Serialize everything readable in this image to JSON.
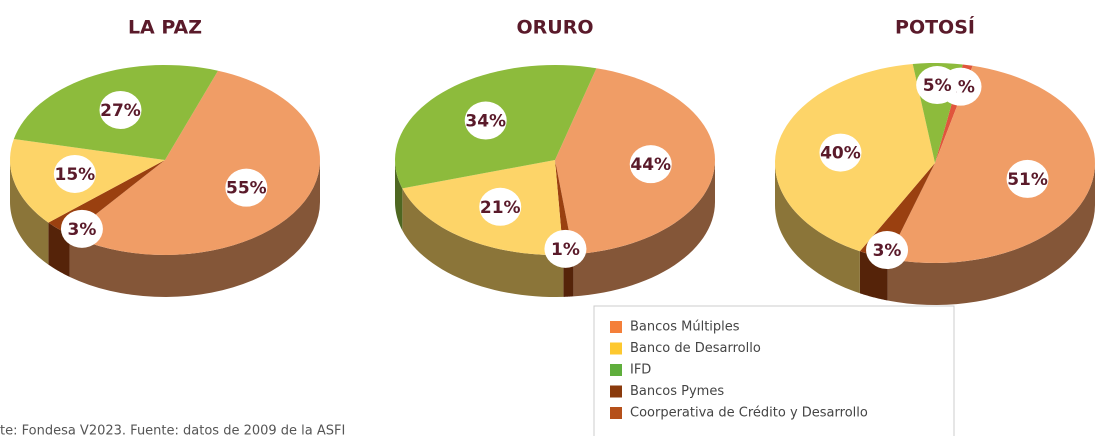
{
  "chart_data": [
    {
      "type": "pie3d",
      "title": "LA PAZ",
      "values": [
        55,
        3,
        15,
        27
      ],
      "value_labels": [
        "55%",
        "3%",
        "15%",
        "27%"
      ],
      "colors": [
        "#f09d66",
        "#9a4010",
        "#fdd468",
        "#8dbb3c"
      ]
    },
    {
      "type": "pie3d",
      "title": "ORURO",
      "values": [
        44,
        1,
        21,
        34
      ],
      "value_labels": [
        "44%",
        "1%",
        "21%",
        "34%"
      ],
      "colors": [
        "#f09d66",
        "#9a4010",
        "#fdd468",
        "#8dbb3c"
      ]
    },
    {
      "type": "pie3d",
      "title": "POTOSÍ",
      "values": [
        1,
        51,
        3,
        40,
        5
      ],
      "value_labels": [
        "1%",
        "51%",
        "3%",
        "40%",
        "5%"
      ],
      "colors": [
        "#e0553c",
        "#f09d66",
        "#9a4010",
        "#fdd468",
        "#8dbb3c"
      ]
    }
  ],
  "legend": [
    {
      "name": "Bancos Múltiples",
      "color": "#f47f3a"
    },
    {
      "name": "Banco de Desarrollo",
      "color": "#fdc82f"
    },
    {
      "name": "IFD",
      "color": "#5fae3c"
    },
    {
      "name": "Bancos Pymes",
      "color": "#8a3a0c"
    },
    {
      "name": "Coorperativa de Crédito y Desarrollo",
      "color": "#b5501a"
    }
  ],
  "footnote": "te: Fondesa V2023. Fuente: datos de 2009 de la ASFI"
}
